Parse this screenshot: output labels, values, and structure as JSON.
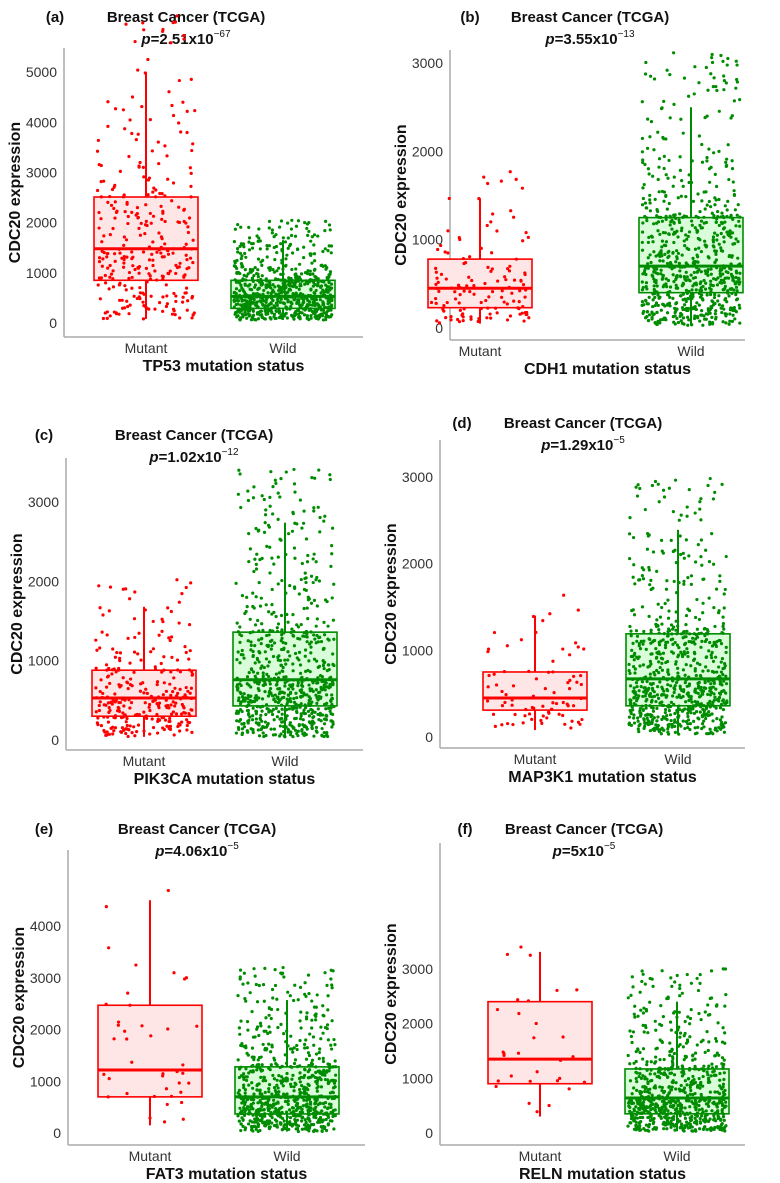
{
  "chart_data": [
    {
      "panel": "(a)",
      "type": "box",
      "title": "Breast Cancer (TCGA)",
      "p_mantissa": "2.51",
      "p_exponent": "−67",
      "ylabel": "CDC20 expression",
      "xlabel": "TP53 mutation status",
      "categories": [
        "Mutant",
        "Wild"
      ],
      "yticks": [
        0,
        1000,
        2000,
        3000,
        4000,
        5000
      ],
      "ylim": [
        -280,
        5480
      ],
      "boxes": [
        {
          "min": 80,
          "q1": 850,
          "median": 1480,
          "q3": 2510,
          "max": 5000
        },
        {
          "min": 60,
          "q1": 290,
          "median": 530,
          "q3": 850,
          "max": 1650
        }
      ]
    },
    {
      "panel": "(b)",
      "type": "box",
      "title": "Breast Cancer (TCGA)",
      "p_mantissa": "3.55",
      "p_exponent": "−13",
      "ylabel": "CDC20 expression",
      "xlabel": "CDH1 mutation status",
      "categories": [
        "Mutant",
        "Wild"
      ],
      "yticks": [
        0,
        1000,
        2000,
        3000
      ],
      "ylim": [
        -136,
        3148
      ],
      "boxes": [
        {
          "min": 50,
          "q1": 230,
          "median": 450,
          "q3": 780,
          "max": 1470
        },
        {
          "min": 30,
          "q1": 400,
          "median": 700,
          "q3": 1250,
          "max": 2500
        }
      ]
    },
    {
      "panel": "(c)",
      "type": "box",
      "title": "Breast Cancer (TCGA)",
      "p_mantissa": "1.02",
      "p_exponent": "−12",
      "ylabel": "CDC20 expression",
      "xlabel": "PIK3CA mutation status",
      "categories": [
        "Mutant",
        "Wild"
      ],
      "yticks": [
        0,
        1000,
        2000,
        3000
      ],
      "ylim": [
        -126,
        3556
      ],
      "boxes": [
        {
          "min": 40,
          "q1": 300,
          "median": 530,
          "q3": 880,
          "max": 1680
        },
        {
          "min": 40,
          "q1": 430,
          "median": 760,
          "q3": 1360,
          "max": 2740
        }
      ]
    },
    {
      "panel": "(d)",
      "type": "box",
      "title": "Breast Cancer (TCGA)",
      "p_mantissa": "1.29",
      "p_exponent": "−5",
      "ylabel": "CDC20 expression",
      "xlabel": "MAP3K1 mutation status",
      "categories": [
        "Mutant",
        "Wild"
      ],
      "yticks": [
        0,
        1000,
        2000,
        3000
      ],
      "ylim": [
        -127,
        3426
      ],
      "boxes": [
        {
          "min": 80,
          "q1": 310,
          "median": 450,
          "q3": 750,
          "max": 1400
        },
        {
          "min": 30,
          "q1": 360,
          "median": 670,
          "q3": 1190,
          "max": 2390
        }
      ]
    },
    {
      "panel": "(e)",
      "type": "box",
      "title": "Breast Cancer (TCGA)",
      "p_mantissa": "4.06",
      "p_exponent": "−5",
      "ylabel": "CDC20 expression",
      "xlabel": "FAT3 mutation status",
      "categories": [
        "Mutant",
        "Wild"
      ],
      "yticks": [
        0,
        1000,
        2000,
        3000,
        4000
      ],
      "ylim": [
        -230,
        5470
      ],
      "boxes": [
        {
          "min": 150,
          "q1": 700,
          "median": 1220,
          "q3": 2470,
          "max": 4500
        },
        {
          "min": 30,
          "q1": 370,
          "median": 700,
          "q3": 1280,
          "max": 2570
        }
      ]
    },
    {
      "panel": "(f)",
      "type": "box",
      "title": "Breast Cancer (TCGA)",
      "p_mantissa": "5",
      "p_exponent": "−5",
      "ylabel": "CDC20 expression",
      "xlabel": "RELN mutation status",
      "categories": [
        "Mutant",
        "Wild"
      ],
      "yticks": [
        0,
        1000,
        2000,
        3000
      ],
      "ylim": [
        -220,
        5300
      ],
      "boxes": [
        {
          "min": 300,
          "q1": 900,
          "median": 1350,
          "q3": 2400,
          "max": 3310
        },
        {
          "min": 30,
          "q1": 350,
          "median": 640,
          "q3": 1170,
          "max": 2400
        }
      ]
    }
  ],
  "colors": {
    "mutant": "#ff0000",
    "mutant_fill": "#ffe6e6",
    "wild": "#008c00",
    "wild_fill": "#d9fcd9",
    "axis": "#aaaaaa"
  }
}
